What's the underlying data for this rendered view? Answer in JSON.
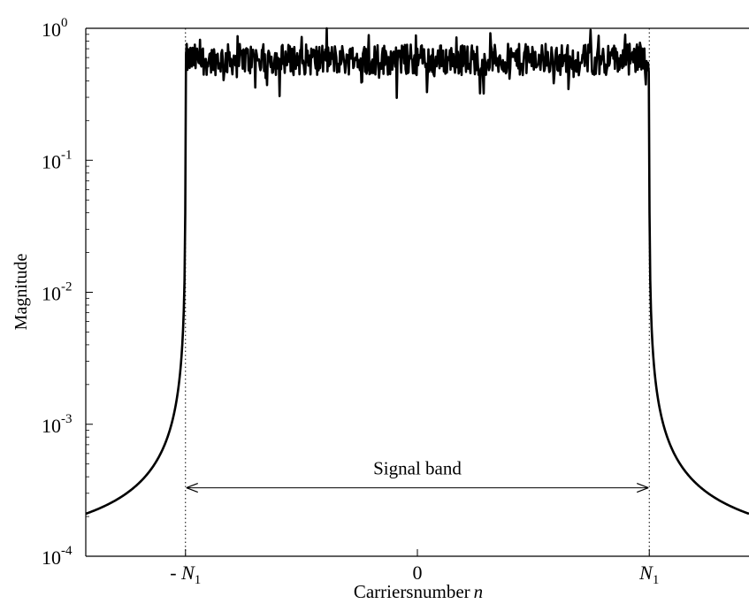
{
  "chart_data": {
    "type": "line",
    "title": "",
    "xlabel": "Carriersnumber",
    "xlabel_var": "n",
    "ylabel": "Magnitude",
    "yscale": "log",
    "ylim": [
      0.0001,
      1
    ],
    "yticks": [
      {
        "value": 1,
        "base": "10",
        "exp": "0"
      },
      {
        "value": 0.1,
        "base": "10",
        "exp": "-1"
      },
      {
        "value": 0.01,
        "base": "10",
        "exp": "-2"
      },
      {
        "value": 0.001,
        "base": "10",
        "exp": "-3"
      },
      {
        "value": 0.0001,
        "base": "10",
        "exp": "-4"
      }
    ],
    "xlim": [
      -1.43,
      1.43
    ],
    "xticks": [
      {
        "value": -1,
        "prefix": "- ",
        "var": "N",
        "sub": "1"
      },
      {
        "value": 0,
        "prefix": "",
        "var": "0",
        "sub": ""
      },
      {
        "value": 1,
        "prefix": "",
        "var": "N",
        "sub": "1"
      }
    ],
    "grid": false,
    "signal_band": {
      "from": -1,
      "to": 1,
      "level_value": 0.00033,
      "label": "Signal band"
    },
    "series": [
      {
        "description_level": "inband magnitude fluctuates around 0.6 (range approx 0.3 to 1.0)",
        "inband_mean": 0.58,
        "edge_value": 0.00021,
        "x": [
          -1.43,
          -1.35,
          -1.25,
          -1.15,
          -1.08,
          -1.04,
          -1.01,
          -1.0,
          -0.9,
          -0.7,
          -0.5,
          -0.3,
          -0.1,
          0,
          0.1,
          0.3,
          0.5,
          0.7,
          0.9,
          1.0,
          1.01,
          1.04,
          1.08,
          1.15,
          1.25,
          1.35,
          1.43
        ],
        "values": [
          0.00021,
          0.00023,
          0.00029,
          0.00045,
          0.0009,
          0.0022,
          0.012,
          0.62,
          0.6,
          0.57,
          0.63,
          0.55,
          0.58,
          0.6,
          0.57,
          0.6,
          0.56,
          0.59,
          0.61,
          0.6,
          0.012,
          0.0022,
          0.0009,
          0.00045,
          0.00029,
          0.00023,
          0.00021
        ]
      }
    ]
  }
}
